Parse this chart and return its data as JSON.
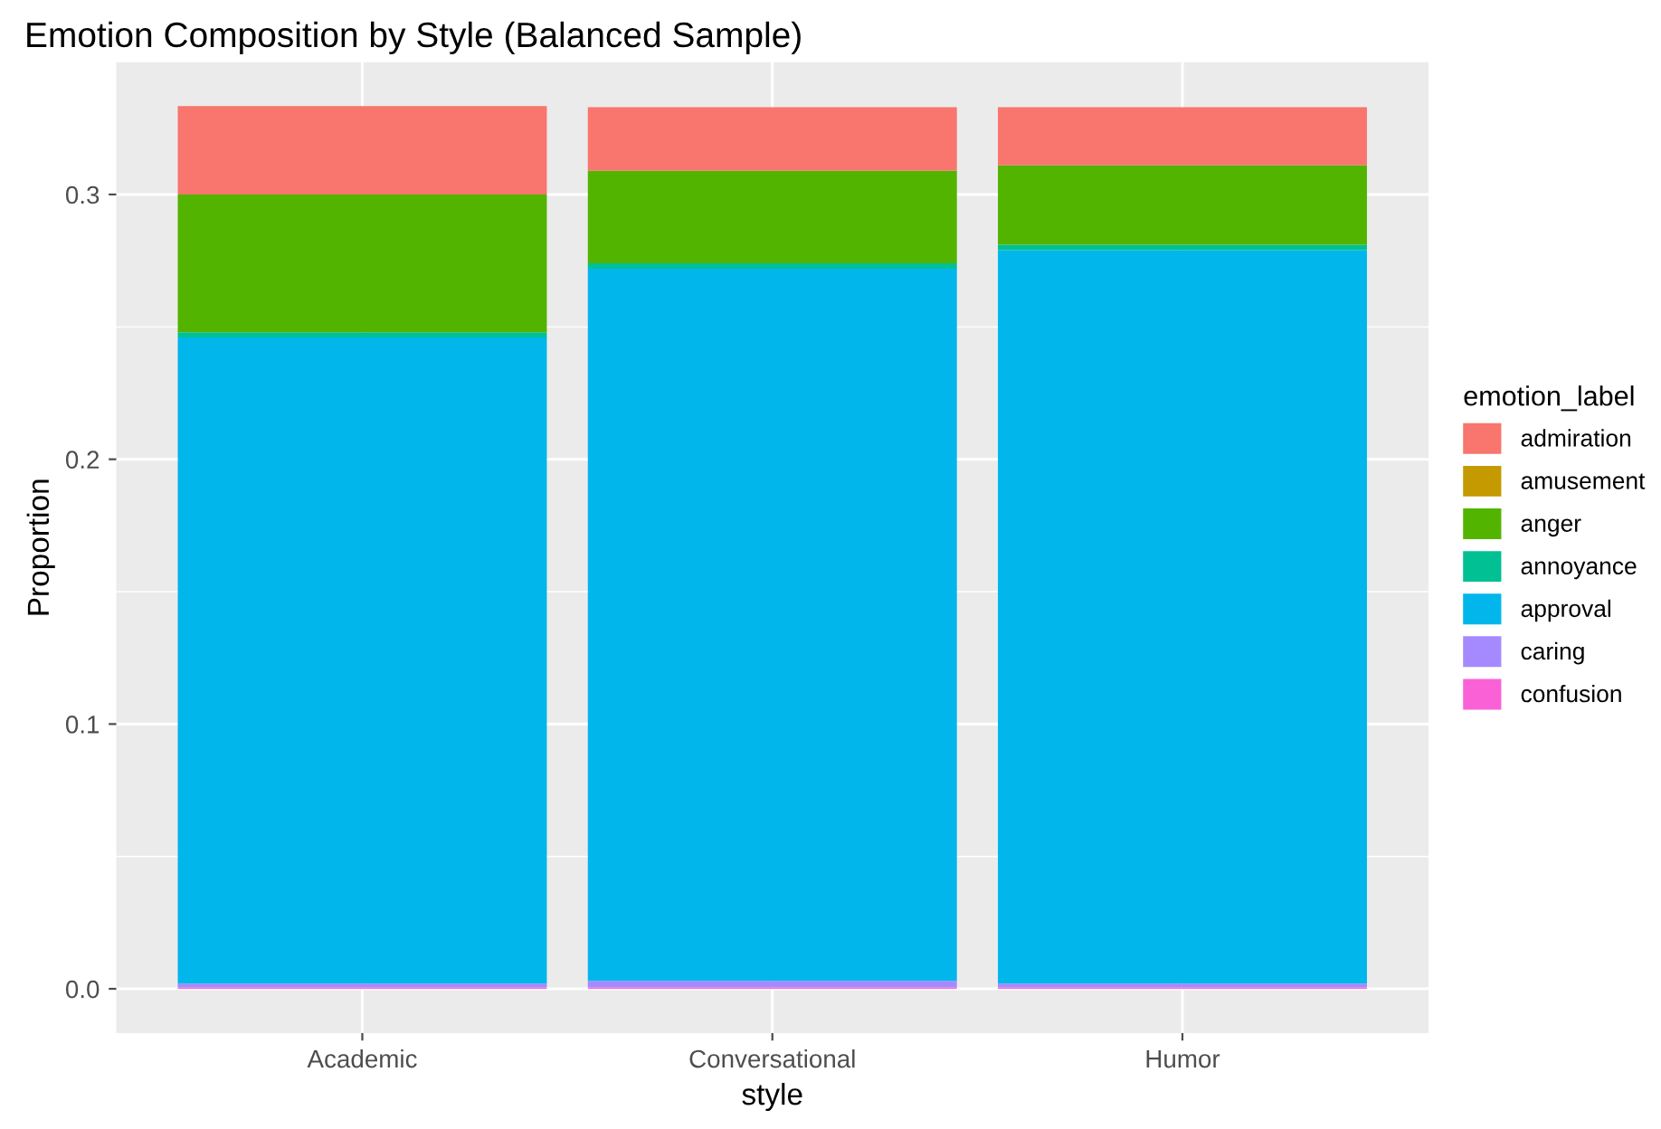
{
  "chart_data": {
    "type": "bar",
    "title": "Emotion Composition by Style (Balanced Sample)",
    "xlabel": "style",
    "ylabel": "Proportion",
    "legend_title": "emotion_label",
    "categories": [
      "Academic",
      "Conversational",
      "Humor"
    ],
    "stacked": true,
    "ylim": [
      -0.0167,
      0.35
    ],
    "yticks": [
      {
        "value": 0,
        "label": "0.0"
      },
      0.1,
      0.2,
      0.3
    ],
    "grid": true,
    "legend": "right",
    "series": [
      {
        "name": "confusion",
        "color": "#fb61d7",
        "values": [
          0.0005,
          0.0005,
          0.0005
        ]
      },
      {
        "name": "caring",
        "color": "#a58aff",
        "values": [
          0.0015,
          0.0025,
          0.0015
        ]
      },
      {
        "name": "approval",
        "color": "#00b6eb",
        "values": [
          0.244,
          0.269,
          0.277
        ]
      },
      {
        "name": "annoyance",
        "color": "#00c094",
        "values": [
          0.002,
          0.002,
          0.002
        ]
      },
      {
        "name": "anger",
        "color": "#53b400",
        "values": [
          0.052,
          0.035,
          0.03
        ]
      },
      {
        "name": "amusement",
        "color": "#c49a00",
        "values": [
          0,
          0,
          0
        ]
      },
      {
        "name": "admiration",
        "color": "#f8766d",
        "values": [
          0.0334,
          0.024,
          0.022
        ]
      }
    ]
  }
}
